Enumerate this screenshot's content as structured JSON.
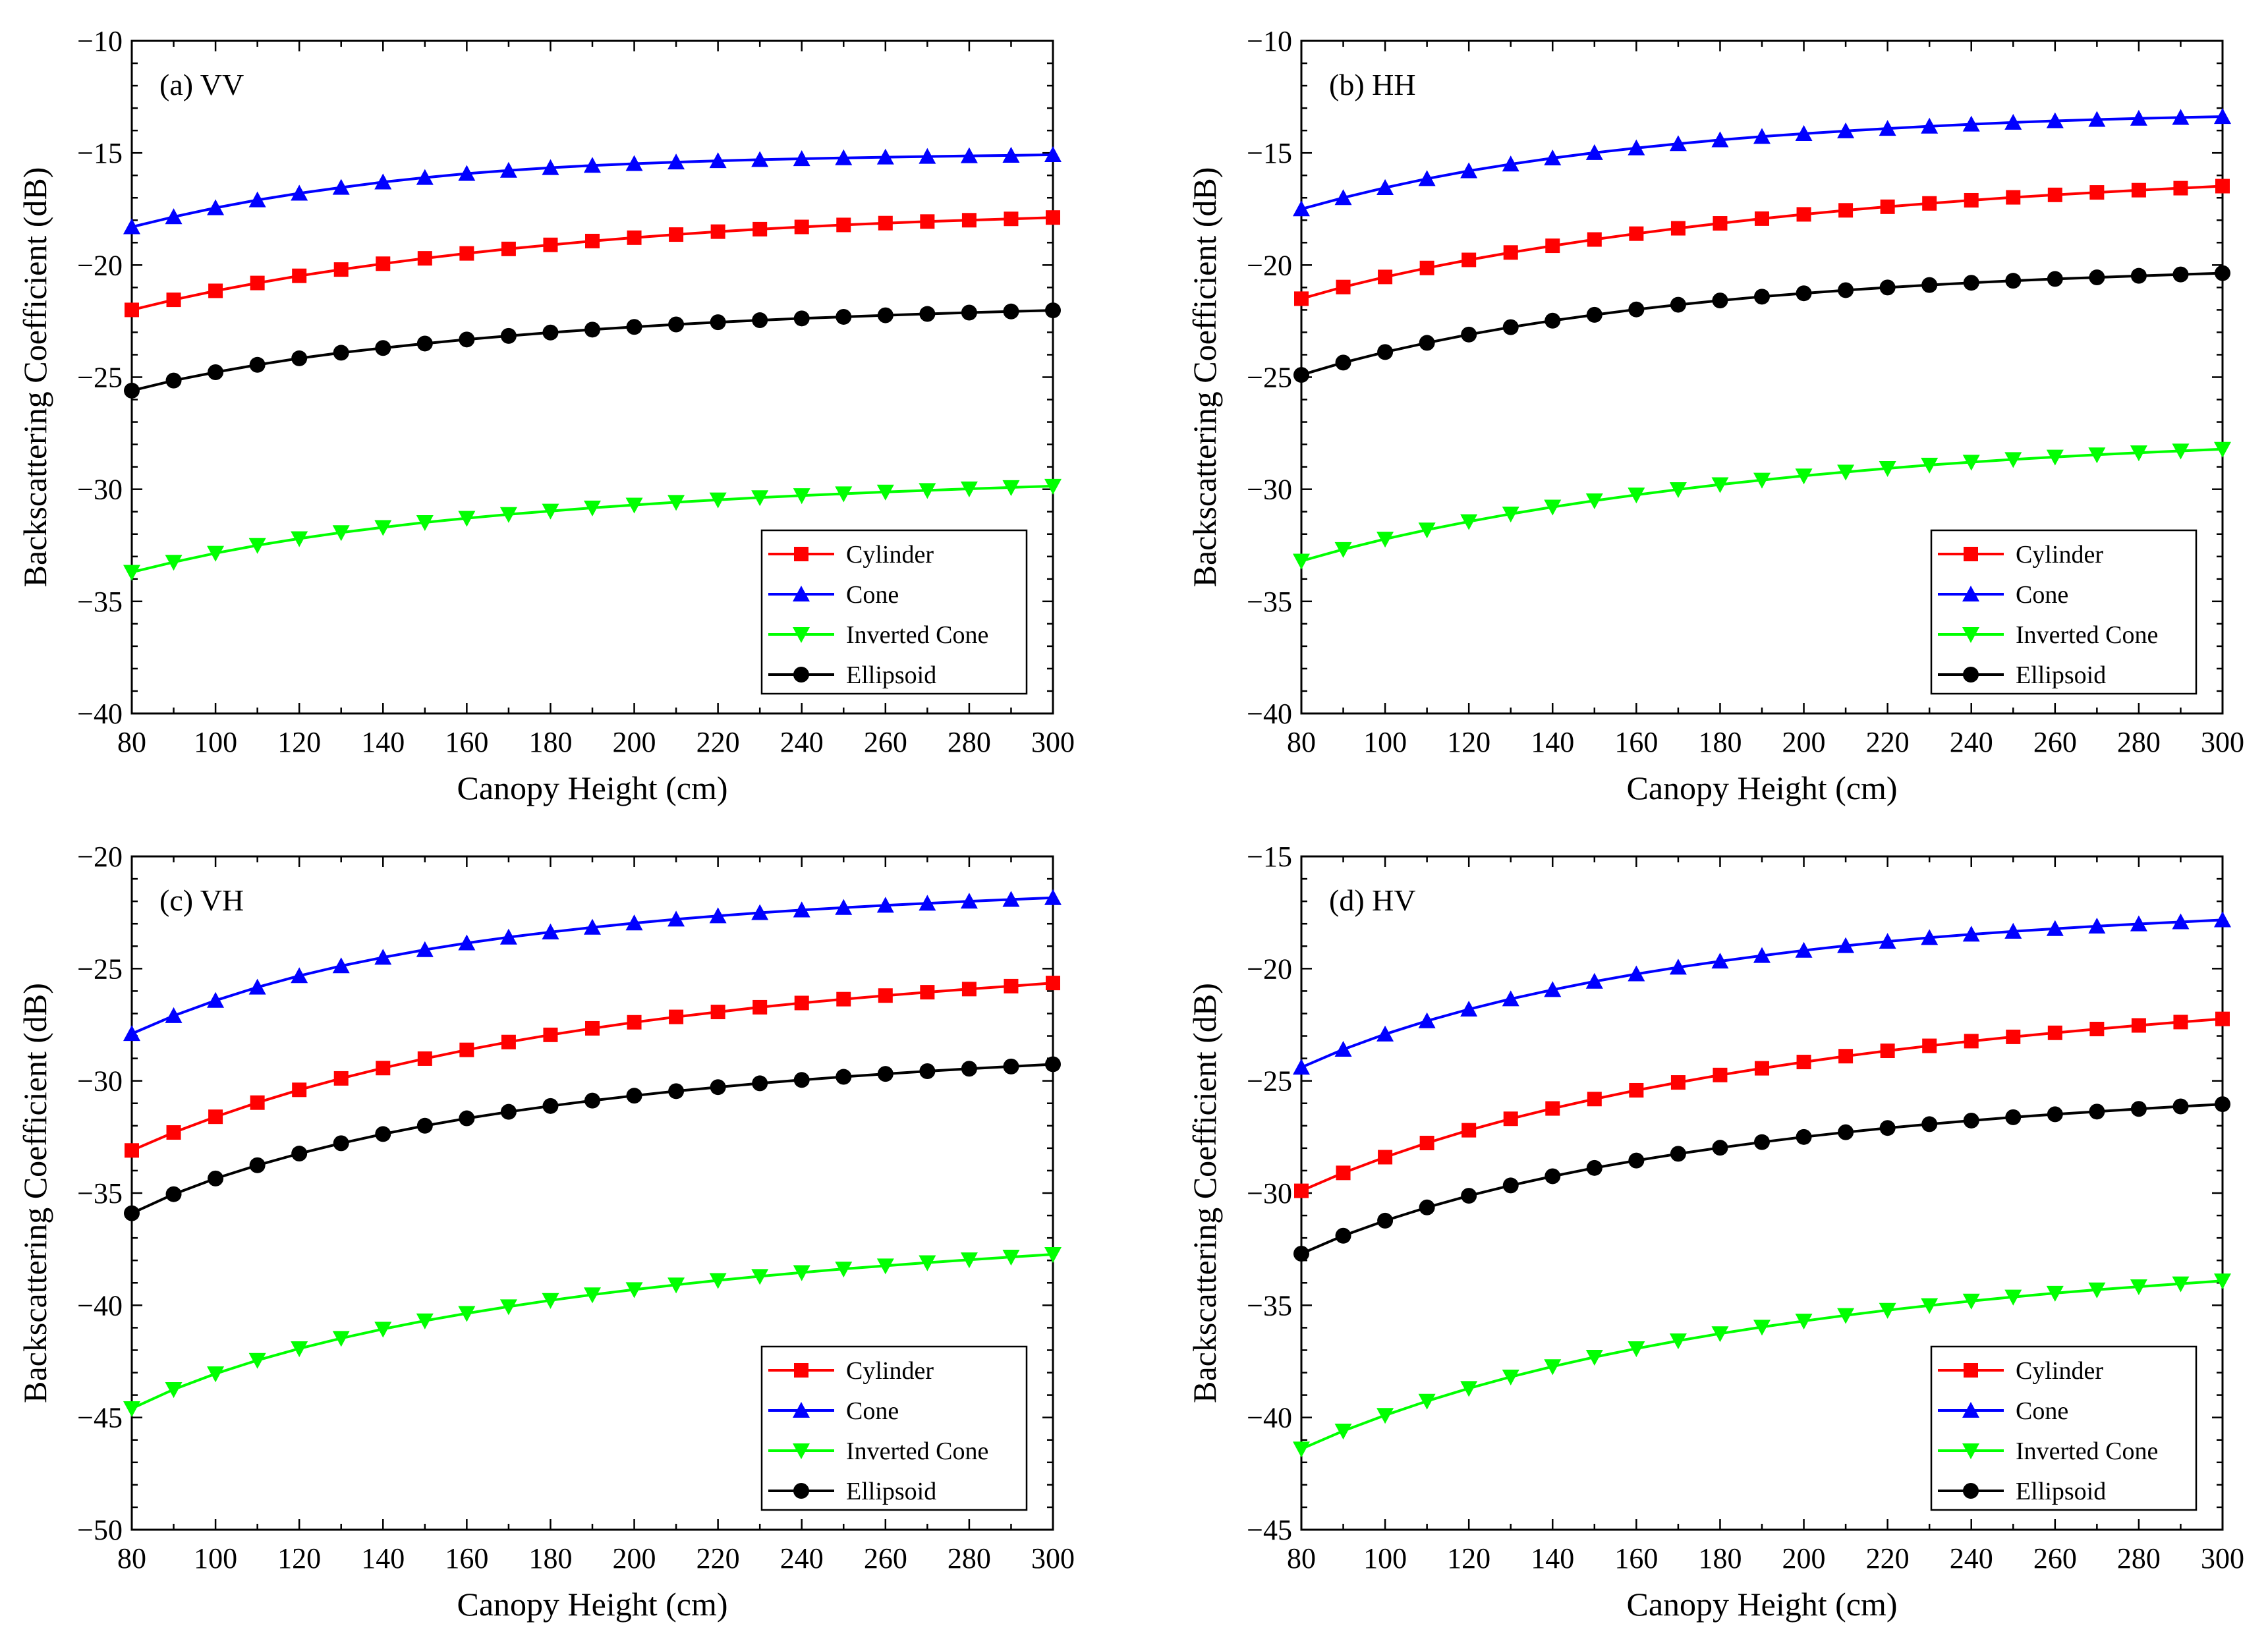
{
  "x": [
    80,
    90,
    100,
    110,
    120,
    130,
    140,
    150,
    160,
    170,
    180,
    190,
    200,
    210,
    220,
    230,
    240,
    250,
    260,
    270,
    280,
    290,
    300
  ],
  "chart_data": [
    {
      "type": "line",
      "panel_label": "(a) VV",
      "xlabel": "Canopy Height (cm)",
      "ylabel": "Backscattering Coefficient (dB)",
      "xlim": [
        80,
        300
      ],
      "ylim": [
        -40,
        -10
      ],
      "xticks": [
        80,
        100,
        120,
        140,
        160,
        180,
        200,
        220,
        240,
        260,
        280,
        300
      ],
      "yticks": [
        -10,
        -15,
        -20,
        -25,
        -30,
        -35,
        -40
      ],
      "legend_position": "bottom-right",
      "series": [
        {
          "name": "Cylinder",
          "color": "#ff0000",
          "marker": "square",
          "values": [
            -22.0,
            -21.55,
            -21.15,
            -20.8,
            -20.48,
            -20.2,
            -19.94,
            -19.7,
            -19.48,
            -19.28,
            -19.1,
            -18.93,
            -18.78,
            -18.64,
            -18.51,
            -18.4,
            -18.3,
            -18.21,
            -18.13,
            -18.06,
            -18.0,
            -17.94,
            -17.88
          ]
        },
        {
          "name": "Cone",
          "color": "#0000ff",
          "marker": "triangle-up",
          "values": [
            -18.3,
            -17.85,
            -17.45,
            -17.1,
            -16.8,
            -16.54,
            -16.3,
            -16.1,
            -15.92,
            -15.78,
            -15.66,
            -15.56,
            -15.48,
            -15.41,
            -15.35,
            -15.3,
            -15.26,
            -15.22,
            -15.19,
            -15.16,
            -15.13,
            -15.11,
            -15.08
          ]
        },
        {
          "name": "Inverted Cone",
          "color": "#00ff00",
          "marker": "triangle-down",
          "values": [
            -33.7,
            -33.25,
            -32.85,
            -32.5,
            -32.2,
            -31.93,
            -31.7,
            -31.48,
            -31.29,
            -31.12,
            -30.97,
            -30.83,
            -30.7,
            -30.58,
            -30.47,
            -30.37,
            -30.28,
            -30.2,
            -30.12,
            -30.05,
            -29.98,
            -29.92,
            -29.86
          ]
        },
        {
          "name": "Ellipsoid",
          "color": "#000000",
          "marker": "circle",
          "values": [
            -25.6,
            -25.15,
            -24.78,
            -24.45,
            -24.16,
            -23.91,
            -23.7,
            -23.5,
            -23.32,
            -23.16,
            -23.01,
            -22.88,
            -22.76,
            -22.65,
            -22.55,
            -22.46,
            -22.38,
            -22.31,
            -22.24,
            -22.18,
            -22.12,
            -22.07,
            -22.02
          ]
        }
      ]
    },
    {
      "type": "line",
      "panel_label": "(b) HH",
      "xlabel": "Canopy Height (cm)",
      "ylabel": "Backscattering Coefficient (dB)",
      "xlim": [
        80,
        300
      ],
      "ylim": [
        -40,
        -10
      ],
      "xticks": [
        80,
        100,
        120,
        140,
        160,
        180,
        200,
        220,
        240,
        260,
        280,
        300
      ],
      "yticks": [
        -10,
        -15,
        -20,
        -25,
        -30,
        -35,
        -40
      ],
      "legend_position": "bottom-right",
      "series": [
        {
          "name": "Cylinder",
          "color": "#ff0000",
          "marker": "square",
          "values": [
            -21.5,
            -20.98,
            -20.53,
            -20.13,
            -19.77,
            -19.44,
            -19.14,
            -18.86,
            -18.6,
            -18.36,
            -18.14,
            -17.93,
            -17.74,
            -17.56,
            -17.4,
            -17.25,
            -17.11,
            -16.98,
            -16.87,
            -16.76,
            -16.66,
            -16.57,
            -16.48
          ]
        },
        {
          "name": "Cone",
          "color": "#0000ff",
          "marker": "triangle-up",
          "values": [
            -17.5,
            -17.0,
            -16.55,
            -16.15,
            -15.8,
            -15.5,
            -15.23,
            -14.99,
            -14.78,
            -14.59,
            -14.42,
            -14.27,
            -14.14,
            -14.02,
            -13.91,
            -13.81,
            -13.72,
            -13.64,
            -13.57,
            -13.51,
            -13.46,
            -13.42,
            -13.38
          ]
        },
        {
          "name": "Inverted Cone",
          "color": "#00ff00",
          "marker": "triangle-down",
          "values": [
            -33.2,
            -32.68,
            -32.22,
            -31.81,
            -31.44,
            -31.1,
            -30.79,
            -30.51,
            -30.25,
            -30.01,
            -29.79,
            -29.59,
            -29.4,
            -29.23,
            -29.07,
            -28.92,
            -28.79,
            -28.67,
            -28.56,
            -28.46,
            -28.37,
            -28.29,
            -28.21
          ]
        },
        {
          "name": "Ellipsoid",
          "color": "#000000",
          "marker": "circle",
          "values": [
            -24.9,
            -24.35,
            -23.88,
            -23.47,
            -23.1,
            -22.77,
            -22.48,
            -22.22,
            -21.98,
            -21.77,
            -21.58,
            -21.41,
            -21.26,
            -21.12,
            -21.0,
            -20.89,
            -20.79,
            -20.7,
            -20.62,
            -20.55,
            -20.48,
            -20.42,
            -20.36
          ]
        }
      ]
    },
    {
      "type": "line",
      "panel_label": "(c) VH",
      "xlabel": "Canopy Height (cm)",
      "ylabel": "Backscattering Coefficient (dB)",
      "xlim": [
        80,
        300
      ],
      "ylim": [
        -50,
        -20
      ],
      "xticks": [
        80,
        100,
        120,
        140,
        160,
        180,
        200,
        220,
        240,
        260,
        280,
        300
      ],
      "yticks": [
        -20,
        -25,
        -30,
        -35,
        -40,
        -45,
        -50
      ],
      "legend_position": "bottom-right",
      "series": [
        {
          "name": "Cylinder",
          "color": "#ff0000",
          "marker": "square",
          "values": [
            -33.1,
            -32.3,
            -31.6,
            -30.97,
            -30.4,
            -29.89,
            -29.43,
            -29.01,
            -28.62,
            -28.27,
            -27.95,
            -27.66,
            -27.39,
            -27.15,
            -26.93,
            -26.72,
            -26.53,
            -26.36,
            -26.2,
            -26.05,
            -25.91,
            -25.78,
            -25.64
          ]
        },
        {
          "name": "Cone",
          "color": "#0000ff",
          "marker": "triangle-up",
          "values": [
            -27.9,
            -27.1,
            -26.42,
            -25.83,
            -25.32,
            -24.88,
            -24.5,
            -24.16,
            -23.86,
            -23.6,
            -23.37,
            -23.16,
            -22.97,
            -22.8,
            -22.65,
            -22.51,
            -22.39,
            -22.28,
            -22.18,
            -22.09,
            -22.0,
            -21.92,
            -21.84
          ]
        },
        {
          "name": "Inverted Cone",
          "color": "#00ff00",
          "marker": "triangle-down",
          "values": [
            -44.6,
            -43.75,
            -43.05,
            -42.45,
            -41.93,
            -41.47,
            -41.06,
            -40.69,
            -40.36,
            -40.06,
            -39.78,
            -39.53,
            -39.3,
            -39.09,
            -38.89,
            -38.71,
            -38.54,
            -38.38,
            -38.24,
            -38.1,
            -37.97,
            -37.85,
            -37.73
          ]
        },
        {
          "name": "Ellipsoid",
          "color": "#000000",
          "marker": "circle",
          "values": [
            -35.9,
            -35.05,
            -34.35,
            -33.76,
            -33.24,
            -32.78,
            -32.37,
            -32.0,
            -31.67,
            -31.38,
            -31.12,
            -30.88,
            -30.66,
            -30.46,
            -30.28,
            -30.11,
            -29.96,
            -29.82,
            -29.69,
            -29.57,
            -29.46,
            -29.36,
            -29.26
          ]
        }
      ]
    },
    {
      "type": "line",
      "panel_label": "(d) HV",
      "xlabel": "Canopy Height (cm)",
      "ylabel": "Backscattering Coefficient (dB)",
      "xlim": [
        80,
        300
      ],
      "ylim": [
        -45,
        -15
      ],
      "xticks": [
        80,
        100,
        120,
        140,
        160,
        180,
        200,
        220,
        240,
        260,
        280,
        300
      ],
      "yticks": [
        -15,
        -20,
        -25,
        -30,
        -35,
        -40,
        -45
      ],
      "legend_position": "bottom-right",
      "series": [
        {
          "name": "Cylinder",
          "color": "#ff0000",
          "marker": "square",
          "values": [
            -29.9,
            -29.1,
            -28.4,
            -27.77,
            -27.2,
            -26.69,
            -26.23,
            -25.81,
            -25.42,
            -25.07,
            -24.74,
            -24.44,
            -24.16,
            -23.9,
            -23.66,
            -23.44,
            -23.23,
            -23.04,
            -22.86,
            -22.69,
            -22.53,
            -22.38,
            -22.24
          ]
        },
        {
          "name": "Cone",
          "color": "#0000ff",
          "marker": "triangle-up",
          "values": [
            -24.4,
            -23.6,
            -22.92,
            -22.33,
            -21.81,
            -21.35,
            -20.94,
            -20.57,
            -20.24,
            -19.94,
            -19.67,
            -19.42,
            -19.19,
            -18.98,
            -18.79,
            -18.62,
            -18.47,
            -18.34,
            -18.22,
            -18.11,
            -18.01,
            -17.92,
            -17.83
          ]
        },
        {
          "name": "Inverted Cone",
          "color": "#00ff00",
          "marker": "triangle-down",
          "values": [
            -41.4,
            -40.6,
            -39.9,
            -39.27,
            -38.7,
            -38.19,
            -37.73,
            -37.31,
            -36.93,
            -36.58,
            -36.26,
            -35.97,
            -35.7,
            -35.45,
            -35.22,
            -35.01,
            -34.81,
            -34.63,
            -34.46,
            -34.31,
            -34.17,
            -34.04,
            -33.91
          ]
        },
        {
          "name": "Ellipsoid",
          "color": "#000000",
          "marker": "circle",
          "values": [
            -32.7,
            -31.9,
            -31.23,
            -30.64,
            -30.12,
            -29.66,
            -29.25,
            -28.88,
            -28.55,
            -28.25,
            -27.98,
            -27.73,
            -27.5,
            -27.29,
            -27.1,
            -26.93,
            -26.77,
            -26.62,
            -26.49,
            -26.37,
            -26.25,
            -26.14,
            -26.04
          ]
        }
      ]
    }
  ]
}
